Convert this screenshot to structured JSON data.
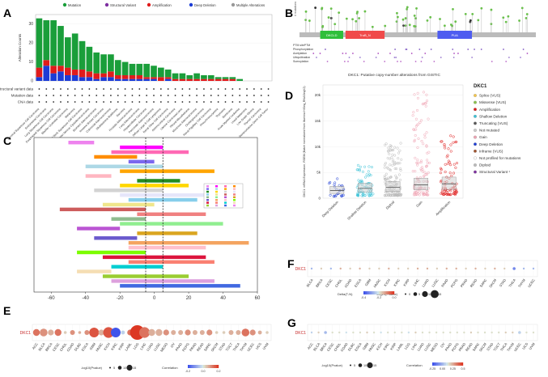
{
  "panels": {
    "A": "A",
    "B": "B",
    "C": "C",
    "D": "D",
    "E": "E",
    "F": "F",
    "G": "G"
  },
  "chart_data": [
    {
      "panel": "A",
      "type": "bar",
      "ylabel": "Alteration Counts",
      "ylim": [
        0,
        35
      ],
      "yticks": [
        0,
        10,
        20,
        30
      ],
      "legend": [
        {
          "name": "Mutation",
          "color": "#1a9e3a"
        },
        {
          "name": "Structural Variant",
          "color": "#7d2fa0"
        },
        {
          "name": "Amplification",
          "color": "#e01b1b"
        },
        {
          "name": "Deep Deletion",
          "color": "#1c3cd6"
        },
        {
          "name": "Multiple Alterations",
          "color": "#999999"
        }
      ],
      "categories": [
        "Cervical Squamous Cell Carcinoma",
        "Endometrial Carcinoma",
        "Lung Squamous Cell Carcinoma",
        "Esophageal Squamous Cell Carcinoma",
        "Bladder Urothelial Carcinoma",
        "Melanoma",
        "Head and Neck Squamous Cell Carcinoma",
        "Ovarian Serous Cystadenocarcinoma",
        "Stomach Adenocarcinoma",
        "Invasive Breast Carcinoma",
        "Colorectal Adenocarcinoma",
        "Glioblastoma Multiforme",
        "Sarcoma",
        "Prostate Adenocarcinoma",
        "Lung Adenocarcinoma",
        "Hepatocellular Carcinoma",
        "Pancreatic Adenocarcinoma",
        "Diffuse Large B-Cell Lymphoma",
        "Renal Clear Cell Carcinoma",
        "Adrenocortical Carcinoma",
        "Uterine Carcinosarcoma",
        "Pleural Mesothelioma",
        "Mucinous Adenocarcinoma",
        "Cholangiocarcinoma",
        "Renal Papillary Cell Carcinoma",
        "Pheochromocytoma",
        "Thymoma",
        "Seminoma",
        "Acute Myeloid Leukemia",
        "Uveal Melanoma",
        "Low Grade Glioma",
        "Thyroid Carcinoma",
        "Non-Seminomatous Germ Cell Tumor"
      ],
      "series": [
        {
          "name": "Deep Deletion",
          "values": [
            2,
            8,
            4,
            5,
            3,
            3,
            2,
            2,
            1,
            2,
            2,
            1,
            1,
            1,
            1,
            1,
            1,
            0,
            1,
            0,
            0,
            0,
            0,
            0,
            0,
            0,
            0,
            0,
            0,
            0,
            0,
            0,
            0
          ]
        },
        {
          "name": "Amplification",
          "values": [
            5,
            3,
            4,
            3,
            4,
            3,
            4,
            3,
            3,
            2,
            3,
            2,
            2,
            2,
            2,
            1,
            1,
            2,
            1,
            1,
            1,
            1,
            1,
            1,
            1,
            1,
            1,
            1,
            0,
            0,
            0,
            0,
            0
          ]
        },
        {
          "name": "Mutation",
          "values": [
            26,
            21,
            24,
            21,
            16,
            19,
            15,
            13,
            11,
            10,
            9,
            8,
            7,
            6,
            6,
            7,
            6,
            5,
            4,
            3,
            3,
            2,
            3,
            2,
            2,
            1,
            1,
            1,
            1,
            0,
            0,
            0,
            0
          ]
        }
      ],
      "track_labels": [
        "Structural variant data",
        "Mutation data",
        "CNA data"
      ]
    },
    {
      "panel": "B",
      "type": "lollipop",
      "protein_domains": [
        {
          "name": "DKCLD",
          "start": 45,
          "end": 95,
          "color": "#2fbf3a"
        },
        {
          "name": "TruB_N",
          "start": 100,
          "end": 185,
          "color": "#f04a4a"
        },
        {
          "name": "PUA",
          "start": 300,
          "end": 375,
          "color": "#4e5cf0"
        }
      ],
      "length": 514,
      "track_labels": [
        "PTM sitePTM",
        "Phosphorylation",
        "Acetylation",
        "Ubiquitination",
        "Sumoylation"
      ],
      "axis_label": "# mutations"
    },
    {
      "panel": "C",
      "type": "forest",
      "xlim": [
        -70,
        60
      ],
      "xticks": [
        -60,
        -40,
        -20,
        0,
        20,
        40,
        60
      ],
      "vlines": [
        -5,
        5
      ]
    },
    {
      "panel": "D",
      "type": "scatter",
      "title": "DKC1: Putative copy-number alterations from GISTIC",
      "ylabel": "DKC1: mRNA Expression, RSEM (Batch normalized from Illumina HiSeq_RNASeqV2)",
      "ylim": [
        0,
        22000
      ],
      "yticks": [
        0,
        5000,
        10000,
        15000,
        20000
      ],
      "ytick_labels": [
        "0",
        "5k",
        "10k",
        "15k",
        "20k"
      ],
      "categories": [
        "Deep Deletion",
        "Shallow Deletion",
        "Diploid",
        "Gain",
        "Amplification"
      ],
      "category_colors": [
        "#1c3cd6",
        "#3cc3d8",
        "#bbbbbb",
        "#f0a3b3",
        "#e01b1b"
      ],
      "medians": [
        1500,
        1900,
        2100,
        2600,
        2800
      ],
      "q1": [
        900,
        1200,
        1300,
        1600,
        1700
      ],
      "q3": [
        2300,
        2900,
        3200,
        3900,
        4100
      ],
      "max": [
        4200,
        6500,
        10800,
        21000,
        12300
      ],
      "legend_title": "DKC1",
      "legend": [
        {
          "name": "Splice (VUS)",
          "color": "#f7c74a"
        },
        {
          "name": "Missense (VUS)",
          "color": "#8bc34a"
        },
        {
          "name": "Amplification",
          "color": "#e01b1b"
        },
        {
          "name": "Shallow Deletion",
          "color": "#3cc3d8"
        },
        {
          "name": "Truncating (VUS)",
          "color": "#555555"
        },
        {
          "name": "Not mutated",
          "color": "#cccccc"
        },
        {
          "name": "Gain",
          "color": "#f0a3b3"
        },
        {
          "name": "Deep Deletion",
          "color": "#1c3cd6"
        },
        {
          "name": "Inframe (VUS)",
          "color": "#a0522d"
        },
        {
          "name": "Not profiled for mutations",
          "color": "#ffffff"
        },
        {
          "name": "Diploid",
          "color": "#bbbbbb"
        },
        {
          "name": "Structural Variant ¹",
          "color": "#7d2fa0"
        }
      ]
    },
    {
      "panel": "E",
      "type": "dotplot",
      "row_label": "DKC1",
      "categories": [
        "ACC",
        "BLCA",
        "BRCA",
        "CESC",
        "CHOL",
        "COAD",
        "DLBC",
        "ESCA",
        "GBM",
        "HNSC",
        "KICH",
        "KIRC",
        "KIRP",
        "LAML",
        "LGG",
        "LIHC",
        "LUAD",
        "LUSC",
        "MESO",
        "OV",
        "PAAD",
        "PCPG",
        "PRAD",
        "READ",
        "SARC",
        "SKCM",
        "STAD",
        "TGCT",
        "THCA",
        "THYM",
        "UCEC",
        "UCS",
        "UVM"
      ],
      "correlation": [
        0.2,
        0.15,
        0.1,
        0.2,
        0.05,
        0.15,
        0.1,
        0.15,
        0.25,
        0.1,
        0.25,
        -0.3,
        -0.05,
        0.2,
        0.3,
        0.2,
        0.1,
        0.1,
        0.15,
        0.1,
        0.1,
        0.15,
        0.1,
        0.1,
        0.15,
        0.05,
        0.05,
        0.1,
        0.1,
        0.2,
        0.15,
        0.1,
        0.05
      ],
      "significance": [
        7,
        8,
        6,
        7,
        3,
        5,
        3,
        5,
        10,
        6,
        11,
        10,
        4,
        6,
        15,
        11,
        7,
        7,
        6,
        5,
        5,
        6,
        5,
        5,
        6,
        3,
        3,
        5,
        5,
        8,
        6,
        4,
        3
      ],
      "size_legend_title": "-log10(Pvalue)",
      "size_legend": [
        "5",
        "10",
        "15"
      ],
      "color_legend_title": "Correlation",
      "color_ticks": [
        "-0.2",
        "0.0",
        "0.2"
      ]
    },
    {
      "panel": "F",
      "type": "dotplot",
      "row_label": "DKC1",
      "categories": [
        "BLCA",
        "BRCA",
        "CESC",
        "CHOL",
        "COAD",
        "ESCA",
        "GBM",
        "HNSC",
        "KICH",
        "KIRC",
        "KIRP",
        "LIHC",
        "LUAD",
        "LUSC",
        "PAAD",
        "PCPG",
        "PRAD",
        "READ",
        "SARC",
        "SKCM",
        "STAD",
        "THCA",
        "THYM",
        "UCEC"
      ],
      "correlation": [
        -0.1,
        0.05,
        -0.1,
        0.1,
        0.05,
        0.1,
        0.05,
        0.05,
        0.1,
        0.05,
        0.05,
        0.1,
        0.1,
        0.05,
        0.1,
        0.1,
        0.05,
        0.1,
        0.05,
        0.1,
        0.05,
        -0.2,
        -0.1,
        -0.1
      ],
      "significance": [
        2,
        1,
        1,
        1,
        1,
        1,
        1,
        1,
        1,
        1,
        1,
        1,
        1,
        1,
        1,
        1,
        1,
        1,
        1,
        1,
        1,
        3,
        2,
        2
      ],
      "color_legend_title": "Delta(T-N)",
      "color_ticks": [
        "-0.4",
        "-0.2",
        "0.0"
      ],
      "size_legend_title": "-log10(Pvalue)",
      "size_legend": [
        "0",
        "5",
        "10",
        "15"
      ]
    },
    {
      "panel": "G",
      "type": "dotplot",
      "row_label": "DKC1",
      "categories": [
        "ACC",
        "BLCA",
        "BRCA",
        "CESC",
        "CHOL",
        "COAD",
        "DLBC",
        "ESCA",
        "GBM",
        "HNSC",
        "KICH",
        "KIRC",
        "KIRP",
        "LAML",
        "LGG",
        "LIHC",
        "LUAD",
        "LUSC",
        "MESO",
        "OV",
        "PAAD",
        "PCPG",
        "PRAD",
        "READ",
        "SARC",
        "SKCM",
        "STAD",
        "TGCT",
        "THCA",
        "THYM",
        "UCEC",
        "UCS",
        "UVM"
      ],
      "correlation": [
        -0.05,
        0.05,
        -0.1,
        0.02,
        0.02,
        -0.02,
        0.02,
        0.02,
        0.05,
        0.02,
        -0.02,
        0.02,
        0.02,
        0.02,
        -0.02,
        0.05,
        0.02,
        0.02,
        0.02,
        0.02,
        0.02,
        0.02,
        0.02,
        0.05,
        0.02,
        0.02,
        0.02,
        0.02,
        0.05,
        0.05,
        -0.05,
        0.02,
        0.02
      ],
      "significance": [
        2,
        1,
        3,
        1,
        1,
        1,
        1,
        1,
        1,
        1,
        1,
        1,
        1,
        1,
        1,
        2,
        1,
        1,
        1,
        1,
        1,
        1,
        1,
        1,
        1,
        1,
        1,
        1,
        1,
        2,
        3,
        1,
        1
      ],
      "size_legend_title": "-log10(Pvalue)",
      "size_legend": [
        "5",
        "10",
        "15"
      ],
      "color_legend_title": "Correlation",
      "color_ticks": [
        "-0.25",
        "0.00",
        "0.25",
        "0.5"
      ]
    }
  ]
}
